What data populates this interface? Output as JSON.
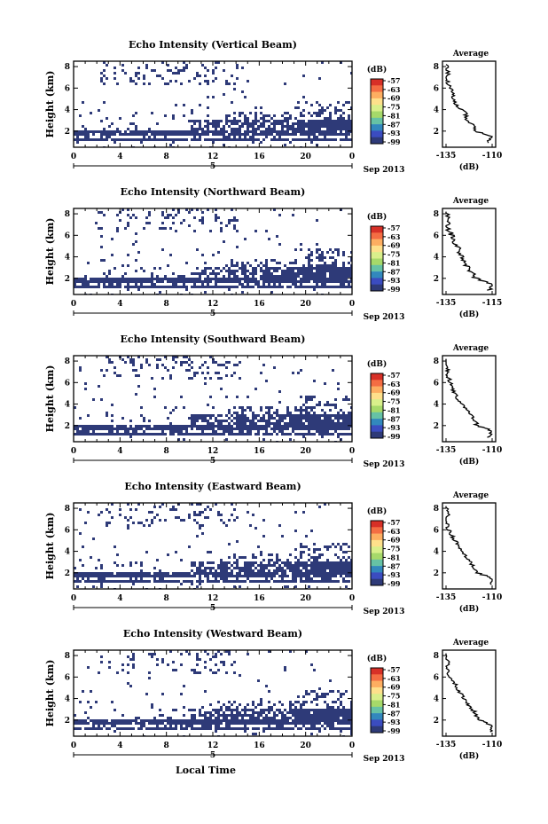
{
  "colors": {
    "echo": "#2e3a78",
    "scale": [
      "#d73027",
      "#f46d43",
      "#fdae61",
      "#fee08b",
      "#d9ef8b",
      "#a6d96a",
      "#66c2a5",
      "#3288bd",
      "#3b4cc0",
      "#2e3a78"
    ]
  },
  "common": {
    "x_ticks": [
      "0",
      "4",
      "8",
      "12",
      "16",
      "20",
      "0"
    ],
    "y_ticks": [
      "2",
      "4",
      "6",
      "8"
    ],
    "ylabel": "Height (km)",
    "xlabel": "Local Time",
    "date_day": "5",
    "date_label": "Sep 2013",
    "colorbar_unit": "(dB)",
    "colorbar_ticks": [
      "-57",
      "-63",
      "-69",
      "-75",
      "-81",
      "-87",
      "-93",
      "-99"
    ],
    "avg_title": "Average",
    "avg_xlabel": "(dB)"
  },
  "chart_data": [
    {
      "type": "heatmap",
      "title": "Echo Intensity (Vertical Beam)",
      "xlabel": "",
      "ylabel": "Height (km)",
      "x_range": [
        0,
        24
      ],
      "y_range": [
        0.5,
        8.5
      ],
      "avg_ticks": [
        "-135",
        "-110"
      ],
      "avg_profile": [
        [
          0.9,
          -112
        ],
        [
          1.5,
          -110
        ],
        [
          2.0,
          -119
        ],
        [
          2.6,
          -121
        ],
        [
          3.2,
          -124
        ],
        [
          3.8,
          -125
        ],
        [
          4.4,
          -129
        ],
        [
          5.0,
          -131
        ],
        [
          5.6,
          -132
        ],
        [
          6.2,
          -133
        ],
        [
          6.8,
          -135
        ],
        [
          7.4,
          -134
        ],
        [
          8.2,
          -135
        ]
      ]
    },
    {
      "type": "heatmap",
      "title": "Echo Intensity (Northward Beam)",
      "xlabel": "",
      "ylabel": "Height (km)",
      "x_range": [
        0,
        24
      ],
      "y_range": [
        0.5,
        8.5
      ],
      "avg_ticks": [
        "-135",
        "-115"
      ],
      "avg_profile": [
        [
          0.9,
          -116
        ],
        [
          1.5,
          -115
        ],
        [
          2.0,
          -122
        ],
        [
          2.6,
          -124
        ],
        [
          3.2,
          -126
        ],
        [
          3.8,
          -128
        ],
        [
          4.4,
          -129
        ],
        [
          5.0,
          -130
        ],
        [
          5.6,
          -132
        ],
        [
          6.2,
          -133
        ],
        [
          6.8,
          -135
        ],
        [
          7.4,
          -134
        ],
        [
          8.2,
          -135
        ]
      ]
    },
    {
      "type": "heatmap",
      "title": "Echo Intensity (Southward Beam)",
      "xlabel": "",
      "ylabel": "Height (km)",
      "x_range": [
        0,
        24
      ],
      "y_range": [
        0.5,
        8.5
      ],
      "avg_ticks": [
        "-135",
        "-110"
      ],
      "avg_profile": [
        [
          0.9,
          -112
        ],
        [
          1.5,
          -110
        ],
        [
          2.0,
          -118
        ],
        [
          2.6,
          -120
        ],
        [
          3.2,
          -123
        ],
        [
          3.8,
          -125
        ],
        [
          4.4,
          -128
        ],
        [
          5.0,
          -130
        ],
        [
          5.6,
          -132
        ],
        [
          6.2,
          -133
        ],
        [
          6.8,
          -135
        ],
        [
          7.4,
          -134
        ],
        [
          8.2,
          -135
        ]
      ]
    },
    {
      "type": "heatmap",
      "title": "Echo Intensity (Eastward Beam)",
      "xlabel": "",
      "ylabel": "Height (km)",
      "x_range": [
        0,
        24
      ],
      "y_range": [
        0.5,
        8.5
      ],
      "avg_ticks": [
        "-135",
        "-110"
      ],
      "avg_profile": [
        [
          0.9,
          -111
        ],
        [
          1.5,
          -110
        ],
        [
          2.0,
          -118
        ],
        [
          2.6,
          -120
        ],
        [
          3.2,
          -123
        ],
        [
          3.8,
          -125
        ],
        [
          4.4,
          -128
        ],
        [
          5.0,
          -130
        ],
        [
          5.6,
          -132
        ],
        [
          6.2,
          -134
        ],
        [
          6.8,
          -135
        ],
        [
          7.4,
          -134
        ],
        [
          8.2,
          -135
        ]
      ]
    },
    {
      "type": "heatmap",
      "title": "Echo Intensity (Westward Beam)",
      "xlabel": "Local Time",
      "ylabel": "Height (km)",
      "x_range": [
        0,
        24
      ],
      "y_range": [
        0.5,
        8.5
      ],
      "avg_ticks": [
        "-135",
        "-110"
      ],
      "avg_profile": [
        [
          0.9,
          -111
        ],
        [
          1.5,
          -110
        ],
        [
          2.0,
          -117
        ],
        [
          2.6,
          -119
        ],
        [
          3.2,
          -122
        ],
        [
          3.8,
          -124
        ],
        [
          4.4,
          -127
        ],
        [
          5.0,
          -129
        ],
        [
          5.6,
          -131
        ],
        [
          6.2,
          -133
        ],
        [
          6.8,
          -135
        ],
        [
          7.4,
          -134
        ],
        [
          8.2,
          -135
        ]
      ]
    }
  ]
}
